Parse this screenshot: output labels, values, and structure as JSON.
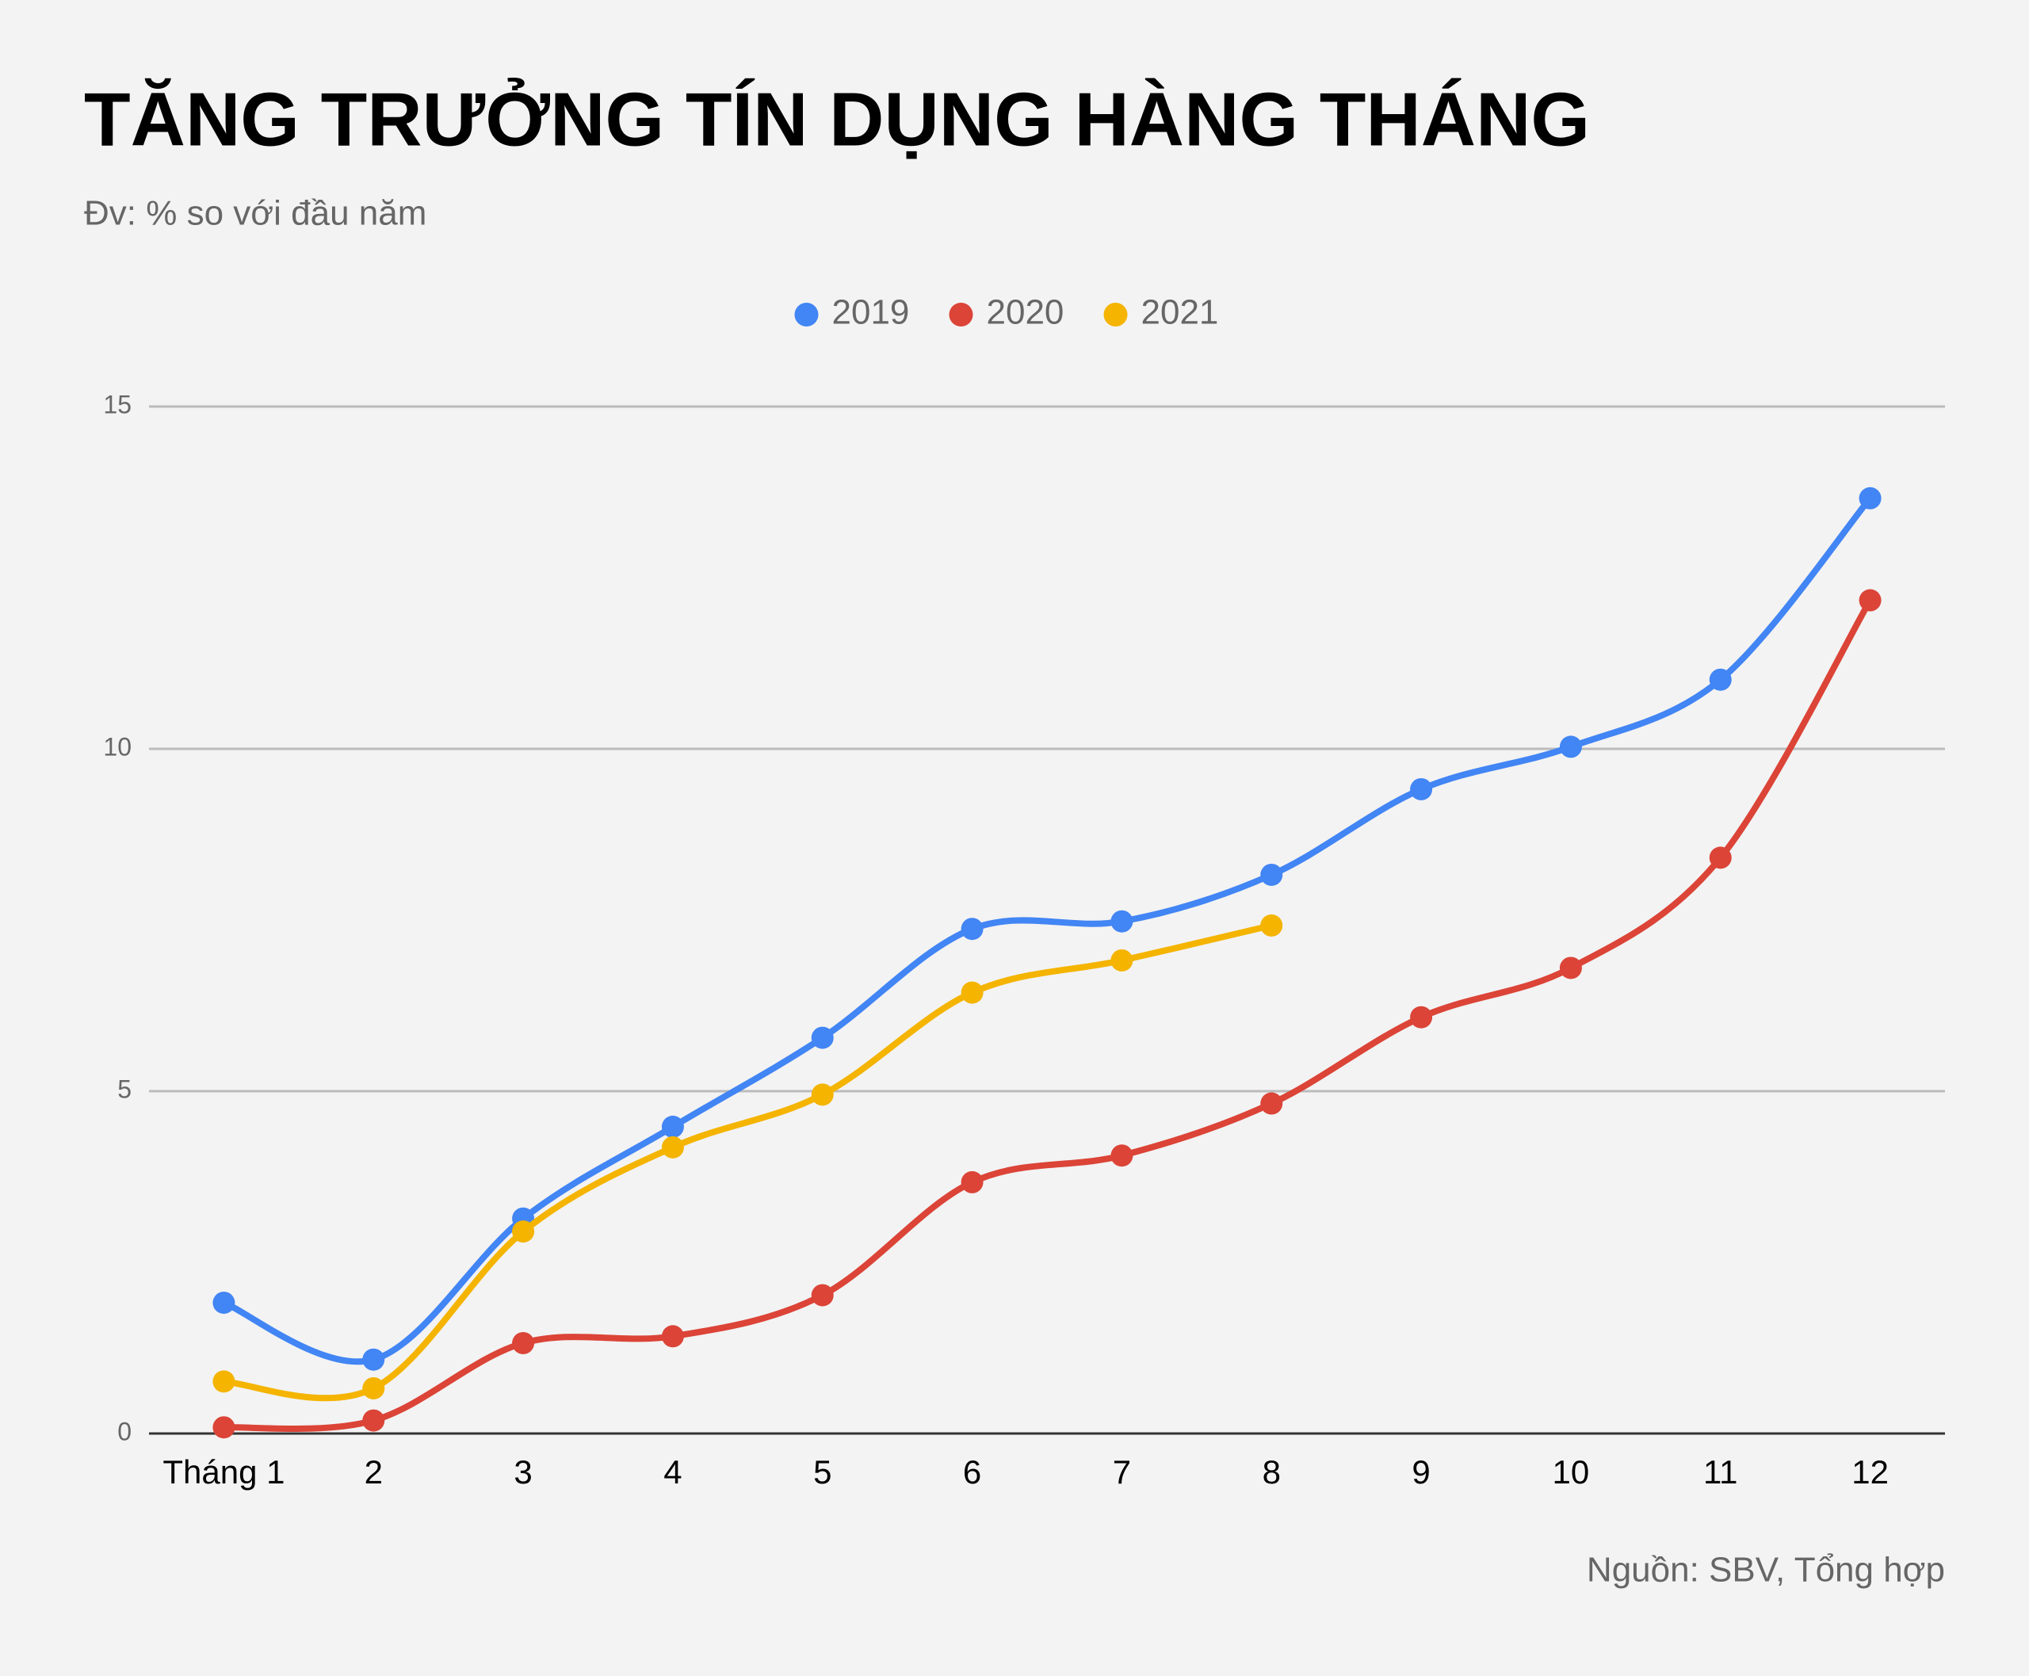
{
  "chart_data": {
    "type": "line",
    "title": "TĂNG TRƯỞNG TÍN DỤNG HÀNG THÁNG",
    "subtitle": "Đv: % so với đầu năm",
    "source": "Nguồn: SBV, Tổng hợp",
    "categories": [
      "Tháng 1",
      "2",
      "3",
      "4",
      "5",
      "6",
      "7",
      "8",
      "9",
      "10",
      "11",
      "12"
    ],
    "series": [
      {
        "name": "2019",
        "color": "#4285f4",
        "values": [
          1.91,
          1.08,
          3.14,
          4.48,
          5.78,
          7.37,
          7.48,
          8.16,
          9.41,
          10.03,
          11.01,
          13.66
        ]
      },
      {
        "name": "2020",
        "color": "#db4437",
        "values": [
          0.09,
          0.19,
          1.32,
          1.42,
          2.02,
          3.67,
          4.06,
          4.82,
          6.08,
          6.8,
          8.41,
          12.17
        ]
      },
      {
        "name": "2021",
        "color": "#f4b400",
        "values": [
          0.76,
          0.66,
          2.95,
          4.18,
          4.95,
          6.44,
          6.91,
          7.42,
          null,
          null,
          null,
          null
        ]
      }
    ],
    "ylim": [
      0,
      15
    ],
    "yticks": [
      0,
      5,
      10,
      15
    ],
    "grid": true,
    "legend": "top",
    "smooth": true
  }
}
